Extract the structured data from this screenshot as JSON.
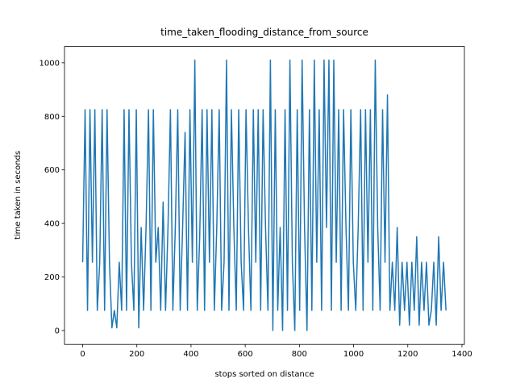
{
  "chart_data": {
    "type": "line",
    "title": "time_taken_flooding_distance_from_source",
    "x_label": "stops sorted on distance",
    "y_label": "time taken in seconds",
    "xlim": [
      -67,
      1409
    ],
    "ylim": [
      -52,
      1061
    ],
    "xticks": [
      0,
      200,
      400,
      600,
      800,
      1000,
      1200,
      1400
    ],
    "yticks": [
      0,
      200,
      400,
      600,
      800,
      1000
    ],
    "grid": false,
    "series": [
      {
        "color": "#1f77b4",
        "x": [
          0,
          9,
          18,
          27,
          36,
          45,
          54,
          63,
          72,
          81,
          90,
          99,
          108,
          117,
          126,
          135,
          144,
          153,
          162,
          171,
          180,
          189,
          198,
          207,
          216,
          225,
          234,
          243,
          252,
          261,
          270,
          279,
          288,
          297,
          306,
          315,
          324,
          333,
          342,
          351,
          360,
          369,
          378,
          387,
          396,
          405,
          414,
          423,
          432,
          441,
          450,
          459,
          468,
          477,
          486,
          495,
          504,
          513,
          522,
          531,
          540,
          549,
          558,
          567,
          576,
          585,
          594,
          603,
          612,
          621,
          630,
          639,
          648,
          657,
          666,
          675,
          684,
          693,
          702,
          711,
          720,
          729,
          738,
          747,
          756,
          765,
          774,
          783,
          792,
          801,
          810,
          819,
          828,
          837,
          846,
          855,
          864,
          873,
          882,
          891,
          900,
          909,
          918,
          927,
          936,
          945,
          954,
          963,
          972,
          981,
          990,
          999,
          1008,
          1017,
          1026,
          1035,
          1044,
          1053,
          1062,
          1071,
          1080,
          1089,
          1098,
          1107,
          1116,
          1125,
          1134,
          1143,
          1152,
          1161,
          1170,
          1179,
          1188,
          1197,
          1206,
          1215,
          1224,
          1233,
          1242,
          1251,
          1260,
          1269,
          1278,
          1287,
          1296,
          1305,
          1314,
          1323,
          1332,
          1341
        ],
        "values": [
          255,
          825,
          75,
          825,
          255,
          825,
          75,
          255,
          825,
          75,
          825,
          255,
          10,
          75,
          10,
          255,
          75,
          825,
          75,
          825,
          255,
          75,
          825,
          10,
          385,
          75,
          385,
          825,
          75,
          825,
          255,
          385,
          75,
          480,
          75,
          385,
          825,
          75,
          385,
          825,
          75,
          385,
          740,
          75,
          825,
          255,
          1010,
          75,
          350,
          825,
          75,
          825,
          255,
          825,
          75,
          385,
          825,
          75,
          255,
          1010,
          75,
          825,
          385,
          75,
          825,
          255,
          75,
          825,
          385,
          75,
          825,
          255,
          825,
          75,
          825,
          385,
          75,
          1010,
          0,
          825,
          75,
          385,
          0,
          825,
          75,
          1010,
          255,
          0,
          825,
          75,
          1010,
          385,
          0,
          825,
          75,
          1010,
          255,
          825,
          75,
          1010,
          385,
          1010,
          75,
          1010,
          255,
          825,
          75,
          825,
          385,
          75,
          825,
          255,
          75,
          385,
          825,
          75,
          825,
          255,
          825,
          75,
          1010,
          385,
          75,
          825,
          255,
          880,
          75,
          255,
          75,
          385,
          20,
          255,
          75,
          255,
          20,
          255,
          75,
          350,
          20,
          255,
          75,
          255,
          20,
          75,
          255,
          20,
          350,
          75,
          255,
          75
        ]
      }
    ]
  }
}
